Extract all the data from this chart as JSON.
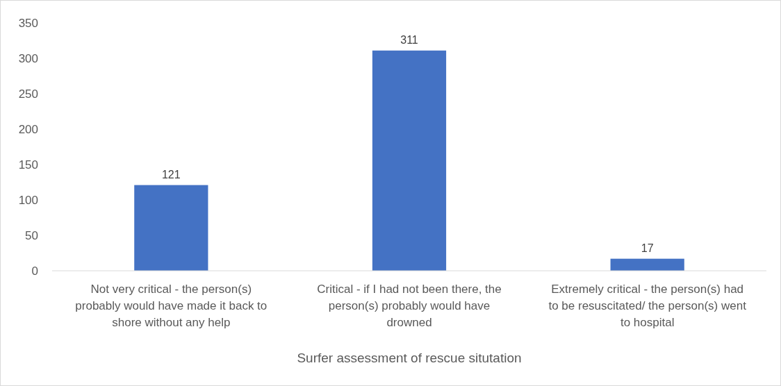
{
  "chart_data": {
    "type": "bar",
    "xlabel": "Surfer assessment of rescue situtation",
    "categories": [
      "Not very critical - the person(s) probably would have made it back to shore without any help",
      "Critical - if I had not been there, the person(s) probably would have drowned",
      "Extremely critical - the person(s) had to be resuscitated/ the person(s) went to hospital"
    ],
    "values": [
      121,
      311,
      17
    ],
    "color": "#4472c4",
    "data_labels": true,
    "ylim": [
      0,
      350
    ],
    "yticks": [
      0,
      50,
      100,
      150,
      200,
      250,
      300,
      350
    ],
    "grid": false
  }
}
